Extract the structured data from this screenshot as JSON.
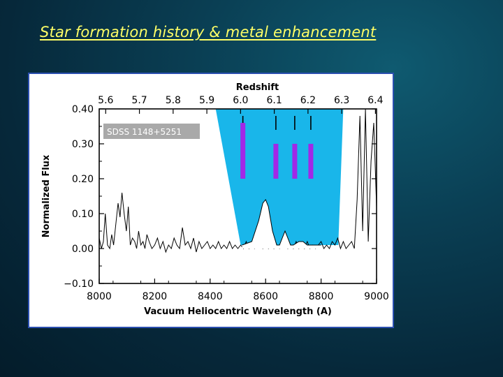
{
  "slide": {
    "title": "Star formation history & metal enhancement"
  },
  "chart_data": {
    "type": "line",
    "title": "",
    "object_label": "SDSS 1148+5251",
    "xlabel": "Vacuum Heliocentric Wavelength (A)",
    "ylabel": "Normalized Flux",
    "top_axis_label": "Redshift",
    "xlim": [
      8000,
      9000
    ],
    "ylim": [
      -0.1,
      0.4
    ],
    "x_ticks": [
      "8000",
      "8200",
      "8400",
      "8600",
      "8800",
      "9000"
    ],
    "y_ticks": [
      "−0.10",
      "0.00",
      "0.10",
      "0.20",
      "0.30",
      "0.40"
    ],
    "redshift_ticks": [
      {
        "z": 5.6,
        "label": "5.6"
      },
      {
        "z": 5.7,
        "label": "5.7"
      },
      {
        "z": 5.8,
        "label": "5.8"
      },
      {
        "z": 5.9,
        "label": "5.9"
      },
      {
        "z": 6.0,
        "label": "6.0"
      },
      {
        "z": 6.1,
        "label": "6.1"
      },
      {
        "z": 6.2,
        "label": "6.2"
      },
      {
        "z": 6.3,
        "label": "6.3"
      },
      {
        "z": 6.4,
        "label": "6.4"
      }
    ],
    "grid": false,
    "shaded_band": {
      "color": "#19b6ea"
    },
    "absorption_markers": [
      {
        "wavelength": 8518,
        "bar_top": 0.36,
        "bar_bottom": 0.2,
        "color": "#a228e6"
      },
      {
        "wavelength": 8637,
        "bar_top": 0.3,
        "bar_bottom": 0.2,
        "color": "#a228e6"
      },
      {
        "wavelength": 8705,
        "bar_top": 0.3,
        "bar_bottom": 0.2,
        "color": "#a228e6"
      },
      {
        "wavelength": 8763,
        "bar_top": 0.3,
        "bar_bottom": 0.2,
        "color": "#a228e6"
      }
    ],
    "series": [
      {
        "x": [
          8000,
          8008,
          8015,
          8022,
          8030,
          8038,
          8045,
          8052,
          8060,
          8068,
          8075,
          8082,
          8090,
          8098,
          8105,
          8112,
          8120,
          8128,
          8135,
          8142,
          8150,
          8158,
          8165,
          8172,
          8180,
          8190,
          8200,
          8210,
          8220,
          8230,
          8240,
          8250,
          8260,
          8270,
          8280,
          8290,
          8300,
          8310,
          8320,
          8330,
          8340,
          8350,
          8360,
          8370,
          8380,
          8390,
          8400,
          8410,
          8420,
          8430,
          8440,
          8450,
          8460,
          8470,
          8480,
          8490,
          8500,
          8510,
          8520,
          8530,
          8540,
          8550,
          8560,
          8570,
          8580,
          8590,
          8600,
          8610,
          8620,
          8630,
          8640,
          8650,
          8660,
          8670,
          8680,
          8690,
          8700,
          8710,
          8720,
          8730,
          8740,
          8750,
          8760,
          8770,
          8780,
          8790,
          8800,
          8810,
          8820,
          8830,
          8840,
          8850,
          8860,
          8870,
          8880,
          8890,
          8900,
          8910,
          8920,
          8930,
          8940,
          8950,
          8960,
          8970,
          8980,
          8990,
          9000
        ],
        "y": [
          0.03,
          0.0,
          0.02,
          0.1,
          0.01,
          0.0,
          0.04,
          0.01,
          0.07,
          0.13,
          0.09,
          0.16,
          0.1,
          0.05,
          0.12,
          0.01,
          0.03,
          0.02,
          0.0,
          0.05,
          0.01,
          0.02,
          0.0,
          0.04,
          0.02,
          0.0,
          0.01,
          0.03,
          0.0,
          0.02,
          -0.01,
          0.01,
          0.0,
          0.03,
          0.01,
          0.0,
          0.06,
          0.01,
          0.02,
          0.0,
          0.03,
          -0.01,
          0.02,
          0.0,
          0.01,
          0.02,
          0.0,
          0.01,
          0.0,
          0.02,
          0.0,
          0.01,
          0.0,
          0.02,
          0.0,
          0.01,
          0.0,
          0.01,
          0.0,
          0.02,
          0.0,
          0.01,
          0.0,
          0.01,
          0.02,
          0.0,
          0.01,
          0.0,
          0.02,
          0.0,
          0.01,
          0.0,
          0.01,
          0.02,
          0.0,
          0.01,
          0.0,
          0.02,
          0.0,
          0.01,
          0.0,
          0.02,
          0.0,
          0.01,
          0.0,
          0.01,
          0.02,
          0.0,
          0.01,
          0.0,
          0.02,
          0.01,
          0.03,
          0.0,
          0.02,
          0.0,
          0.01,
          0.02,
          0.0,
          0.14,
          0.38,
          0.05,
          0.4,
          0.02,
          0.25,
          0.36,
          0.12
        ]
      },
      {
        "x": [
          8515,
          8550,
          8575,
          8590,
          8600,
          8610,
          8625,
          8640,
          8650,
          8660,
          8670,
          8680,
          8690,
          8700,
          8720,
          8735,
          8750,
          8780,
          8800
        ],
        "y": [
          0.01,
          0.02,
          0.08,
          0.13,
          0.14,
          0.12,
          0.05,
          0.01,
          0.01,
          0.03,
          0.05,
          0.03,
          0.01,
          0.01,
          0.02,
          0.02,
          0.01,
          0.01,
          0.01
        ]
      }
    ]
  }
}
